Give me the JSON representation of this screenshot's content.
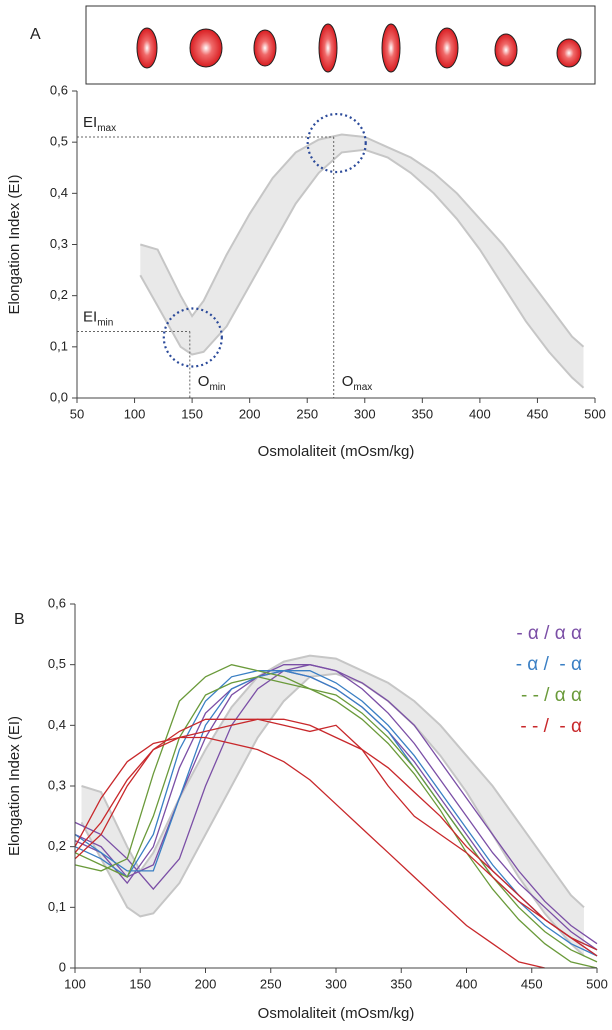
{
  "chart_data": [
    {
      "type": "band",
      "panel_label": "A",
      "x_label": "Osmolaliteit (mOsm/kg)",
      "y_label": "Elongation Index (EI)",
      "xlim": [
        50,
        500
      ],
      "xticks": [
        50,
        100,
        150,
        200,
        250,
        300,
        350,
        400,
        450,
        500
      ],
      "ylim": [
        0,
        0.6
      ],
      "yticks": [
        {
          "value": 0,
          "label": "0,0"
        },
        {
          "value": 0.1,
          "label": "0,1"
        },
        {
          "value": 0.2,
          "label": "0,2"
        },
        {
          "value": 0.3,
          "label": "0,3"
        },
        {
          "value": 0.4,
          "label": "0,4"
        },
        {
          "value": 0.5,
          "label": "0,5"
        },
        {
          "value": 0.6,
          "label": "0,6"
        }
      ],
      "band": {
        "x": [
          105,
          120,
          140,
          150,
          160,
          180,
          200,
          220,
          240,
          260,
          280,
          300,
          320,
          340,
          360,
          380,
          400,
          420,
          440,
          460,
          480,
          490
        ],
        "upper": [
          0.3,
          0.29,
          0.2,
          0.16,
          0.19,
          0.28,
          0.36,
          0.43,
          0.48,
          0.505,
          0.515,
          0.51,
          0.49,
          0.47,
          0.44,
          0.4,
          0.35,
          0.3,
          0.24,
          0.18,
          0.12,
          0.1
        ],
        "lower": [
          0.24,
          0.18,
          0.1,
          0.085,
          0.09,
          0.14,
          0.22,
          0.3,
          0.38,
          0.44,
          0.48,
          0.485,
          0.47,
          0.44,
          0.4,
          0.35,
          0.29,
          0.22,
          0.15,
          0.09,
          0.04,
          0.02
        ],
        "color": "#e9e9e9",
        "edge_color": "#c6c6c6"
      },
      "markers": {
        "max": {
          "x": 273,
          "y": 0.51,
          "ei": {
            "text": "EI",
            "sub": "max"
          },
          "o": {
            "text": "O",
            "sub": "max"
          }
        },
        "min": {
          "x": 148,
          "y": 0.13,
          "ei": {
            "text": "EI",
            "sub": "min"
          },
          "o": {
            "text": "O",
            "sub": "min"
          }
        }
      }
    },
    {
      "type": "line",
      "panel_label": "B",
      "x_label": "Osmolaliteit (mOsm/kg)",
      "y_label": "Elongation Index (EI)",
      "xlim": [
        100,
        500
      ],
      "xticks": [
        100,
        150,
        200,
        250,
        300,
        350,
        400,
        450,
        500
      ],
      "ylim": [
        0,
        0.6
      ],
      "yticks": [
        0,
        {
          "value": 0.1,
          "label": "0,1"
        },
        {
          "value": 0.2,
          "label": "0,2"
        },
        {
          "value": 0.3,
          "label": "0,3"
        },
        {
          "value": 0.4,
          "label": "0,4"
        },
        {
          "value": 0.5,
          "label": "0,5"
        },
        {
          "value": 0.6,
          "label": "0,6"
        }
      ],
      "band": {
        "x": [
          105,
          120,
          140,
          150,
          160,
          180,
          200,
          220,
          240,
          260,
          280,
          300,
          320,
          340,
          360,
          380,
          400,
          420,
          440,
          460,
          480,
          490
        ],
        "upper": [
          0.3,
          0.29,
          0.2,
          0.16,
          0.19,
          0.28,
          0.36,
          0.43,
          0.48,
          0.505,
          0.515,
          0.51,
          0.49,
          0.47,
          0.44,
          0.4,
          0.35,
          0.3,
          0.24,
          0.18,
          0.12,
          0.1
        ],
        "lower": [
          0.24,
          0.18,
          0.1,
          0.085,
          0.09,
          0.14,
          0.22,
          0.3,
          0.38,
          0.44,
          0.48,
          0.485,
          0.47,
          0.44,
          0.4,
          0.35,
          0.29,
          0.22,
          0.15,
          0.09,
          0.04,
          0.02
        ],
        "color": "#e9e9e9",
        "edge_color": "#c6c6c6"
      },
      "x": [
        100,
        120,
        140,
        160,
        180,
        200,
        220,
        240,
        260,
        280,
        300,
        320,
        340,
        360,
        380,
        400,
        420,
        440,
        460,
        480,
        500
      ],
      "groups": [
        {
          "name": "- α / α α",
          "color": "#7b4fa6",
          "lines": [
            [
              0.22,
              0.2,
              0.15,
              0.17,
              0.28,
              0.38,
              0.45,
              0.48,
              0.5,
              0.5,
              0.49,
              0.46,
              0.42,
              0.37,
              0.31,
              0.25,
              0.19,
              0.14,
              0.1,
              0.06,
              0.03
            ],
            [
              0.24,
              0.22,
              0.18,
              0.13,
              0.18,
              0.3,
              0.4,
              0.46,
              0.49,
              0.5,
              0.49,
              0.47,
              0.44,
              0.4,
              0.34,
              0.28,
              0.22,
              0.16,
              0.11,
              0.07,
              0.04
            ],
            [
              0.21,
              0.19,
              0.14,
              0.2,
              0.33,
              0.42,
              0.46,
              0.48,
              0.49,
              0.48,
              0.46,
              0.43,
              0.39,
              0.34,
              0.28,
              0.22,
              0.16,
              0.12,
              0.08,
              0.05,
              0.02
            ]
          ]
        },
        {
          "name": "- α /  - α",
          "color": "#3a7fc4",
          "lines": [
            [
              0.2,
              0.18,
              0.15,
              0.22,
              0.36,
              0.44,
              0.48,
              0.49,
              0.49,
              0.48,
              0.46,
              0.43,
              0.39,
              0.33,
              0.27,
              0.21,
              0.15,
              0.11,
              0.07,
              0.04,
              0.02
            ],
            [
              0.22,
              0.19,
              0.16,
              0.16,
              0.28,
              0.4,
              0.46,
              0.48,
              0.49,
              0.49,
              0.47,
              0.44,
              0.4,
              0.35,
              0.29,
              0.23,
              0.17,
              0.12,
              0.08,
              0.05,
              0.03
            ]
          ]
        },
        {
          "name": "- - / α α",
          "color": "#6a9a3a",
          "lines": [
            [
              0.17,
              0.16,
              0.18,
              0.32,
              0.44,
              0.48,
              0.5,
              0.49,
              0.48,
              0.46,
              0.44,
              0.41,
              0.37,
              0.32,
              0.26,
              0.19,
              0.13,
              0.08,
              0.04,
              0.01,
              0.0
            ],
            [
              0.19,
              0.17,
              0.15,
              0.25,
              0.38,
              0.45,
              0.47,
              0.48,
              0.47,
              0.46,
              0.45,
              0.42,
              0.38,
              0.33,
              0.27,
              0.21,
              0.15,
              0.1,
              0.06,
              0.03,
              0.01
            ]
          ]
        },
        {
          "name": "- - /  - α",
          "color": "#c8282b",
          "lines": [
            [
              0.2,
              0.28,
              0.34,
              0.37,
              0.38,
              0.38,
              0.37,
              0.36,
              0.34,
              0.31,
              0.27,
              0.23,
              0.19,
              0.15,
              0.11,
              0.07,
              0.04,
              0.01,
              0.0,
              null,
              null
            ],
            [
              0.18,
              0.22,
              0.3,
              0.36,
              0.39,
              0.41,
              0.41,
              0.41,
              0.41,
              0.4,
              0.38,
              0.36,
              0.33,
              0.29,
              0.25,
              0.2,
              0.16,
              0.12,
              0.08,
              0.05,
              0.02
            ],
            [
              0.19,
              0.24,
              0.31,
              0.36,
              0.38,
              0.39,
              0.4,
              0.41,
              0.4,
              0.39,
              0.4,
              0.36,
              0.3,
              0.25,
              0.22,
              0.19,
              0.15,
              0.11,
              0.08,
              0.05,
              0.03
            ]
          ]
        }
      ]
    }
  ]
}
